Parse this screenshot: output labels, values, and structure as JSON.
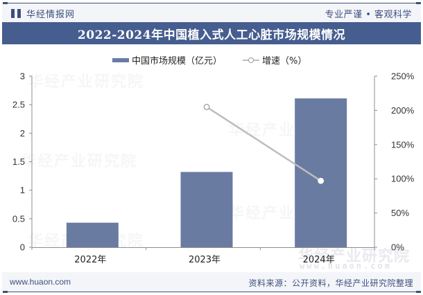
{
  "header": {
    "brand": "华经情报网",
    "slogan": "专业严谨 • 客观科学",
    "title": "2022-2024年中国植入式人工心脏市场规模情况"
  },
  "legend": {
    "bar_label": "中国市场规模（亿元）",
    "line_label": "增速（%）"
  },
  "axes": {
    "left_ticks": [
      "0",
      "0.5",
      "1",
      "1.5",
      "2",
      "2.5",
      "3"
    ],
    "right_ticks": [
      "0%",
      "50%",
      "100%",
      "150%",
      "200%",
      "250%"
    ],
    "categories": [
      "2022年",
      "2023年",
      "2024年"
    ]
  },
  "footer": {
    "url": "www.huaon.com",
    "source": "资料来源：公开资料，华经产业研究院整理"
  },
  "watermark": {
    "text": "华经产业研究院",
    "url": "www.huaon.com"
  },
  "colors": {
    "bar": "#6a7ba2",
    "line": "#bdbdbd",
    "title_bg": "#465d8f",
    "brand": "#3c4f7c"
  },
  "chart_data": {
    "type": "bar",
    "title": "2022-2024年中国植入式人工心脏市场规模情况",
    "categories": [
      "2022年",
      "2023年",
      "2024年"
    ],
    "series": [
      {
        "name": "中国市场规模（亿元）",
        "type": "bar",
        "axis": "left",
        "values": [
          0.43,
          1.32,
          2.61
        ]
      },
      {
        "name": "增速（%）",
        "type": "line",
        "axis": "right",
        "values": [
          null,
          205,
          97
        ]
      }
    ],
    "xlabel": "",
    "ylabel": "",
    "ylim": [
      0,
      3
    ],
    "y2lim": [
      0,
      250
    ],
    "yticks": [
      0,
      0.5,
      1,
      1.5,
      2,
      2.5,
      3
    ],
    "y2ticks": [
      "0%",
      "50%",
      "100%",
      "150%",
      "200%",
      "250%"
    ],
    "legend_position": "top",
    "grid": false
  }
}
